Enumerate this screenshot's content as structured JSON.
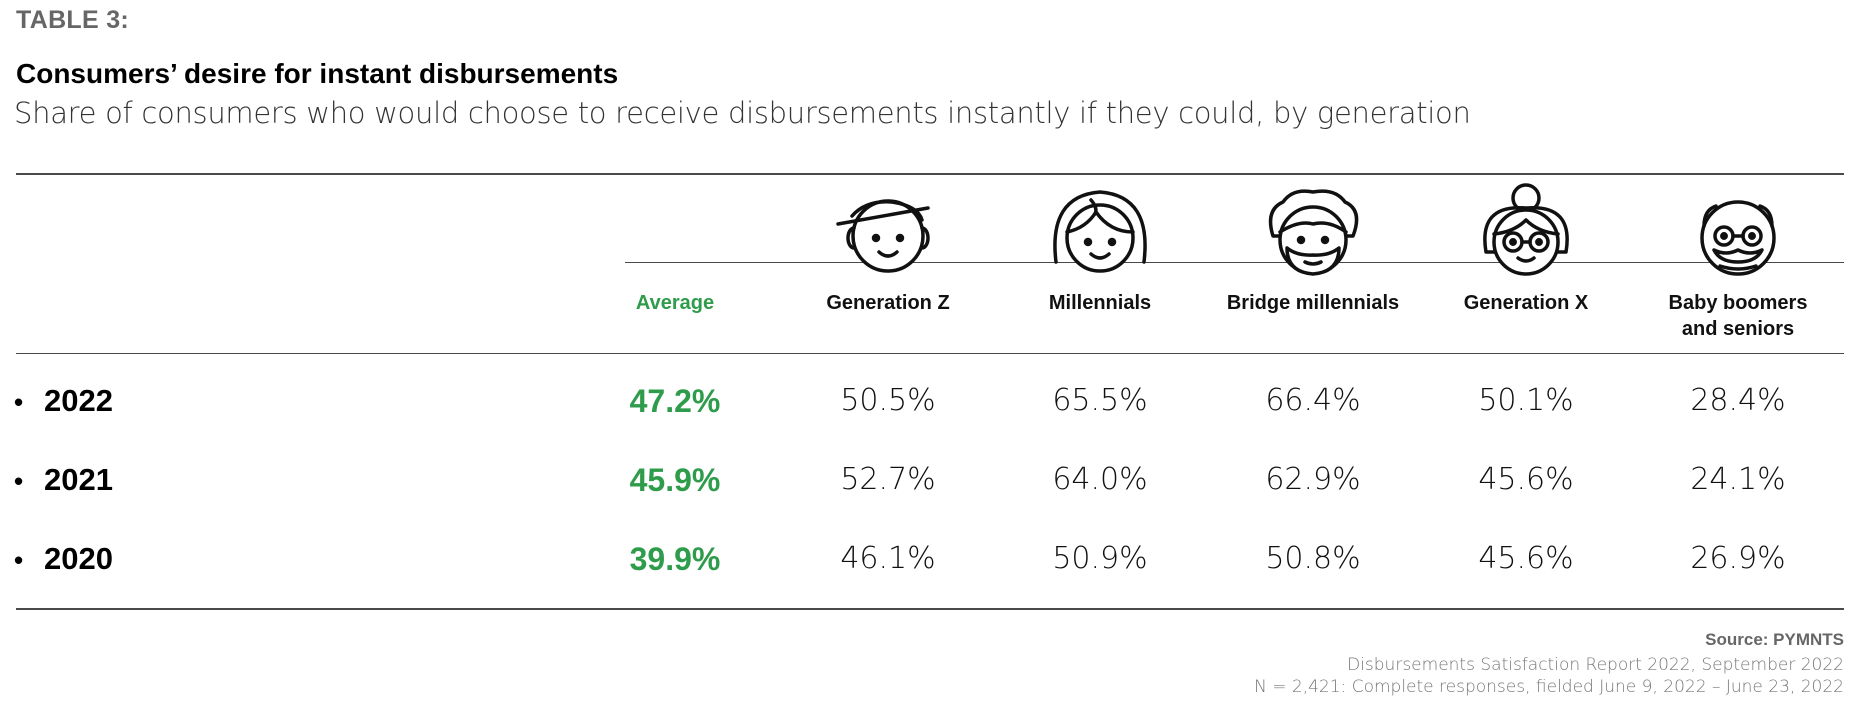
{
  "table_label": "TABLE 3:",
  "title": "Consumers’ desire for instant disbursements",
  "subtitle": "Share of consumers who would choose to receive disbursements instantly if they could, by generation",
  "colors": {
    "accent": "#2e9c4b",
    "rule": "#4a4a4a",
    "muted": "#666666"
  },
  "chart_data": {
    "type": "table",
    "title": "Consumers’ desire for instant disbursements",
    "subtitle": "Share of consumers who would choose to receive disbursements instantly if they could, by generation",
    "columns": [
      {
        "label": "Average",
        "icon": "",
        "highlight": true
      },
      {
        "label": "Generation Z",
        "icon": "gen-z-avatar-icon"
      },
      {
        "label": "Millennials",
        "icon": "millennial-avatar-icon"
      },
      {
        "label": "Bridge millennials",
        "icon": "bridge-millennial-avatar-icon"
      },
      {
        "label": "Generation X",
        "icon": "gen-x-avatar-icon"
      },
      {
        "label": "Baby boomers\nand seniors",
        "icon": "boomer-avatar-icon"
      }
    ],
    "rows": [
      {
        "year": "2022",
        "values": [
          "47.2%",
          "50.5%",
          "65.5%",
          "66.4%",
          "50.1%",
          "28.4%"
        ]
      },
      {
        "year": "2021",
        "values": [
          "45.9%",
          "52.7%",
          "64.0%",
          "62.9%",
          "45.6%",
          "24.1%"
        ]
      },
      {
        "year": "2020",
        "values": [
          "39.9%",
          "46.1%",
          "50.9%",
          "50.8%",
          "45.6%",
          "26.9%"
        ]
      }
    ]
  },
  "source": {
    "label": "Source: PYMNTS",
    "report": "Disbursements Satisfaction Report 2022, September 2022",
    "sample": "N = 2,421: Complete responses, fielded June 9, 2022 – June 23, 2022"
  }
}
